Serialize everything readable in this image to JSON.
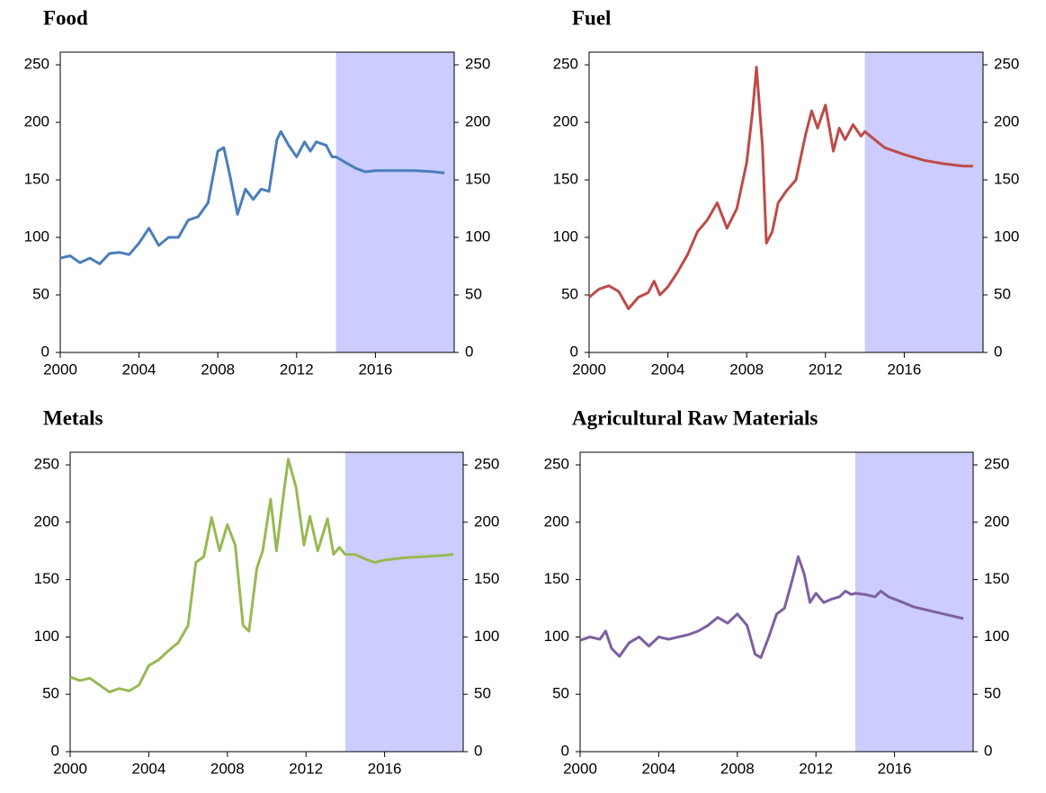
{
  "chart_data": [
    {
      "type": "line",
      "title": "Food",
      "color": "#4a7ebb",
      "x": [
        2000,
        2000.5,
        2001,
        2001.5,
        2002,
        2002.5,
        2003,
        2003.5,
        2004,
        2004.5,
        2005,
        2005.5,
        2006,
        2006.5,
        2007,
        2007.5,
        2008,
        2008.3,
        2008.6,
        2009,
        2009.4,
        2009.8,
        2010.2,
        2010.6,
        2011,
        2011.2,
        2011.6,
        2012,
        2012.4,
        2012.7,
        2013,
        2013.5,
        2013.8,
        2014,
        2014.5,
        2015,
        2015.5,
        2016,
        2017,
        2018,
        2019,
        2019.5
      ],
      "values": [
        82,
        84,
        78,
        82,
        77,
        86,
        87,
        85,
        95,
        108,
        93,
        100,
        100,
        115,
        118,
        130,
        175,
        178,
        155,
        120,
        142,
        133,
        142,
        140,
        185,
        192,
        180,
        170,
        183,
        175,
        183,
        180,
        170,
        170,
        165,
        160,
        157,
        158,
        158,
        158,
        157,
        156
      ],
      "xlim": [
        2000,
        2020
      ],
      "xticks": [
        2000,
        2004,
        2008,
        2012,
        2016
      ],
      "shaded_xrange": [
        2014,
        2020
      ],
      "ylim": [
        0,
        261
      ],
      "yticks": [
        0,
        50,
        100,
        150,
        200,
        250
      ],
      "y2lim": [
        0,
        261
      ],
      "y2ticks": [
        0,
        50,
        100,
        150,
        200,
        250
      ]
    },
    {
      "type": "line",
      "title": "Fuel",
      "color": "#be4b48",
      "x": [
        2000,
        2000.5,
        2001,
        2001.5,
        2002,
        2002.5,
        2003,
        2003.3,
        2003.6,
        2004,
        2004.5,
        2005,
        2005.5,
        2006,
        2006.5,
        2007,
        2007.5,
        2008,
        2008.3,
        2008.5,
        2008.8,
        2009,
        2009.3,
        2009.6,
        2010,
        2010.5,
        2011,
        2011.3,
        2011.6,
        2012,
        2012.4,
        2012.7,
        2013,
        2013.4,
        2013.8,
        2014,
        2014.5,
        2015,
        2016,
        2017,
        2018,
        2019,
        2019.5
      ],
      "values": [
        48,
        55,
        58,
        53,
        38,
        48,
        52,
        62,
        50,
        57,
        70,
        85,
        105,
        115,
        130,
        108,
        125,
        165,
        210,
        248,
        180,
        95,
        105,
        130,
        140,
        150,
        190,
        210,
        195,
        215,
        175,
        195,
        185,
        198,
        188,
        192,
        185,
        178,
        172,
        167,
        164,
        162,
        162
      ],
      "xlim": [
        2000,
        2020
      ],
      "xticks": [
        2000,
        2004,
        2008,
        2012,
        2016
      ],
      "shaded_xrange": [
        2014,
        2020
      ],
      "ylim": [
        0,
        261
      ],
      "yticks": [
        0,
        50,
        100,
        150,
        200,
        250
      ],
      "y2lim": [
        0,
        261
      ],
      "y2ticks": [
        0,
        50,
        100,
        150,
        200,
        250
      ]
    },
    {
      "type": "line",
      "title": "Metals",
      "color": "#98b954",
      "x": [
        2000,
        2000.5,
        2001,
        2001.5,
        2002,
        2002.5,
        2003,
        2003.5,
        2004,
        2004.5,
        2005,
        2005.5,
        2006,
        2006.4,
        2006.8,
        2007.2,
        2007.6,
        2008,
        2008.4,
        2008.8,
        2009.1,
        2009.5,
        2009.8,
        2010.2,
        2010.5,
        2010.9,
        2011.1,
        2011.5,
        2011.9,
        2012.2,
        2012.6,
        2013.1,
        2013.4,
        2013.7,
        2014,
        2014.5,
        2015,
        2015.5,
        2016,
        2017,
        2018,
        2019,
        2019.5
      ],
      "values": [
        65,
        62,
        64,
        58,
        52,
        55,
        53,
        58,
        75,
        80,
        88,
        95,
        110,
        165,
        170,
        204,
        175,
        198,
        180,
        110,
        105,
        160,
        175,
        220,
        175,
        230,
        255,
        230,
        180,
        205,
        175,
        203,
        172,
        178,
        172,
        172,
        168,
        165,
        167,
        169,
        170,
        171,
        172
      ],
      "xlim": [
        2000,
        2020
      ],
      "xticks": [
        2000,
        2004,
        2008,
        2012,
        2016
      ],
      "shaded_xrange": [
        2014,
        2020
      ],
      "ylim": [
        0,
        261
      ],
      "yticks": [
        0,
        50,
        100,
        150,
        200,
        250
      ],
      "y2lim": [
        0,
        261
      ],
      "y2ticks": [
        0,
        50,
        100,
        150,
        200,
        250
      ]
    },
    {
      "type": "line",
      "title": "Agricultural Raw Materials",
      "color": "#7d60a0",
      "x": [
        2000,
        2000.5,
        2001,
        2001.3,
        2001.6,
        2002,
        2002.5,
        2003,
        2003.5,
        2004,
        2004.5,
        2005,
        2005.5,
        2006,
        2006.5,
        2007,
        2007.5,
        2008,
        2008.5,
        2008.9,
        2009.2,
        2009.6,
        2010,
        2010.4,
        2010.8,
        2011.1,
        2011.4,
        2011.7,
        2012,
        2012.4,
        2012.8,
        2013.2,
        2013.5,
        2013.8,
        2014,
        2014.5,
        2015,
        2015.3,
        2015.7,
        2016,
        2017,
        2018,
        2019,
        2019.5
      ],
      "values": [
        97,
        100,
        98,
        105,
        90,
        83,
        95,
        100,
        92,
        100,
        98,
        100,
        102,
        105,
        110,
        117,
        112,
        120,
        110,
        85,
        82,
        100,
        120,
        125,
        150,
        170,
        155,
        130,
        138,
        130,
        133,
        135,
        140,
        137,
        138,
        137,
        135,
        140,
        135,
        133,
        126,
        122,
        118,
        116
      ],
      "xlim": [
        2000,
        2020
      ],
      "xticks": [
        2000,
        2004,
        2008,
        2012,
        2016
      ],
      "shaded_xrange": [
        2014,
        2020
      ],
      "ylim": [
        0,
        261
      ],
      "yticks": [
        0,
        50,
        100,
        150,
        200,
        250
      ],
      "y2lim": [
        0,
        261
      ],
      "y2ticks": [
        0,
        50,
        100,
        150,
        200,
        250
      ]
    }
  ]
}
